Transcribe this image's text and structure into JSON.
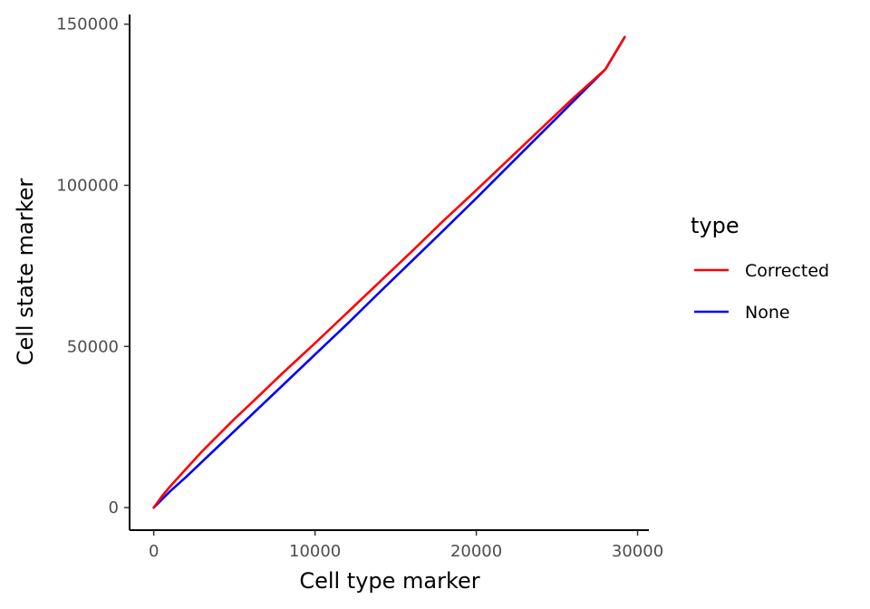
{
  "chart_data": {
    "type": "line",
    "xlabel": "Cell type marker",
    "ylabel": "Cell state marker",
    "xlim": [
      -1500,
      30700
    ],
    "ylim": [
      -7000,
      153000
    ],
    "xticks": [
      0,
      10000,
      20000,
      30000
    ],
    "xtick_labels": [
      "0",
      "10000",
      "20000",
      "30000"
    ],
    "yticks": [
      0,
      50000,
      100000,
      150000
    ],
    "ytick_labels": [
      "0",
      "50000",
      "100000",
      "150000"
    ],
    "grid": false,
    "legend": {
      "title": "type",
      "placement": "right"
    },
    "series": [
      {
        "name": "Corrected",
        "color": "#ff0000",
        "x": [
          0,
          500,
          1000,
          2000,
          3000,
          4000,
          5000,
          6000,
          8000,
          10000,
          12000,
          14000,
          16000,
          18000,
          20000,
          22000,
          24000,
          26000,
          28000,
          29200
        ],
        "y": [
          0,
          3500,
          6500,
          12000,
          17500,
          22500,
          27500,
          32200,
          41800,
          51000,
          60500,
          70000,
          79500,
          89200,
          98500,
          108000,
          117500,
          127000,
          136000,
          146000
        ]
      },
      {
        "name": "None",
        "color": "#0000ff",
        "x": [
          0,
          500,
          1000,
          2000,
          4000,
          6000,
          8000,
          10000,
          12000,
          14000,
          16000,
          18000,
          20000,
          22000,
          24000,
          26000,
          28000,
          29200
        ],
        "y": [
          0,
          2500,
          5000,
          9500,
          19000,
          28500,
          38000,
          47500,
          57000,
          66800,
          76500,
          86200,
          96000,
          106000,
          116000,
          126000,
          136000,
          146000
        ]
      }
    ]
  }
}
